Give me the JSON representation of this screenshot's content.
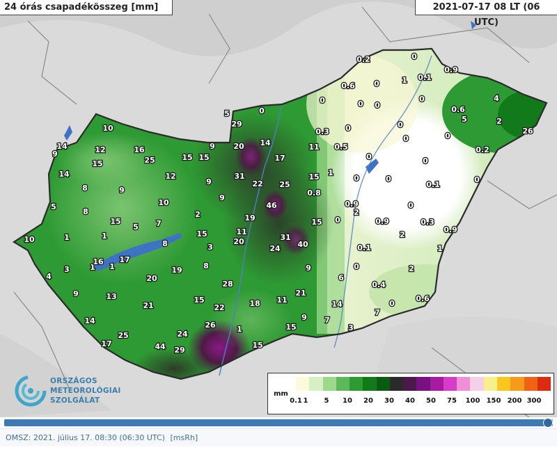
{
  "map": {
    "title": "24 órás csapadékösszeg [mm]",
    "timestamp": "2021-07-17 08 LT  (06 UTC)"
  },
  "logo": {
    "line1": "ORSZÁGOS",
    "line2": "METEOROLÓGIAI",
    "line3": "SZOLGÁLAT",
    "icon": "omsz-spiral-logo-icon"
  },
  "legend": {
    "unit": "mm",
    "ticks": [
      "0.1",
      "1",
      "5",
      "10",
      "20",
      "30",
      "40",
      "50",
      "75",
      "100",
      "150",
      "200",
      "300"
    ],
    "colors": [
      "#fbfbdc",
      "#d8efc3",
      "#9ed88c",
      "#5cb85a",
      "#2e9a33",
      "#137a1c",
      "#0b5a12",
      "#2a2a2a",
      "#4b1a4a",
      "#7a1180",
      "#a81a9e",
      "#d63cc8",
      "#f08ed8",
      "#f6d0e6",
      "#f8f08a",
      "#f8c820",
      "#f59a1a",
      "#ee6414",
      "#dd2a10"
    ]
  },
  "observations": [
    {
      "v": "0.2"
    },
    {
      "v": "0"
    },
    {
      "v": "0.9"
    },
    {
      "v": "1"
    },
    {
      "v": "0.1"
    },
    {
      "v": "0"
    },
    {
      "v": "0.6"
    },
    {
      "v": "0"
    },
    {
      "v": "0"
    },
    {
      "v": "4"
    },
    {
      "v": "0"
    },
    {
      "v": "0"
    },
    {
      "v": "0"
    },
    {
      "v": "0"
    },
    {
      "v": "0.6"
    },
    {
      "v": "5"
    },
    {
      "v": "0"
    },
    {
      "v": "2"
    },
    {
      "v": "26"
    },
    {
      "v": "0.3"
    },
    {
      "v": "0"
    },
    {
      "v": "0"
    },
    {
      "v": "0.5"
    },
    {
      "v": "0"
    },
    {
      "v": "0.2"
    },
    {
      "v": "0"
    },
    {
      "v": "0"
    },
    {
      "v": "0.1"
    },
    {
      "v": "0"
    },
    {
      "v": "0"
    },
    {
      "v": "0.9"
    },
    {
      "v": "2"
    },
    {
      "v": "0.9"
    },
    {
      "v": "0.3"
    },
    {
      "v": "0.9"
    },
    {
      "v": "2"
    },
    {
      "v": "0.1"
    },
    {
      "v": "1"
    },
    {
      "v": "0"
    },
    {
      "v": "2"
    },
    {
      "v": "0.4"
    },
    {
      "v": "0.6"
    },
    {
      "v": "0"
    },
    {
      "v": "7"
    },
    {
      "v": "5"
    },
    {
      "v": "0"
    },
    {
      "v": "29"
    },
    {
      "v": "20"
    },
    {
      "v": "14"
    },
    {
      "v": "11"
    },
    {
      "v": "17"
    },
    {
      "v": "31"
    },
    {
      "v": "22"
    },
    {
      "v": "25"
    },
    {
      "v": "15"
    },
    {
      "v": "1"
    },
    {
      "v": "0.8"
    },
    {
      "v": "46"
    },
    {
      "v": "19"
    },
    {
      "v": "15"
    },
    {
      "v": "0"
    },
    {
      "v": "11"
    },
    {
      "v": "31"
    },
    {
      "v": "40"
    },
    {
      "v": "24"
    },
    {
      "v": "11"
    },
    {
      "v": "9"
    },
    {
      "v": "6"
    },
    {
      "v": "21"
    },
    {
      "v": "18"
    },
    {
      "v": "11"
    },
    {
      "v": "14"
    },
    {
      "v": "9"
    },
    {
      "v": "7"
    },
    {
      "v": "3"
    },
    {
      "v": "15"
    },
    {
      "v": "1"
    },
    {
      "v": "15"
    },
    {
      "v": "10"
    },
    {
      "v": "10"
    },
    {
      "v": "14"
    },
    {
      "v": "9"
    },
    {
      "v": "12"
    },
    {
      "v": "16"
    },
    {
      "v": "25"
    },
    {
      "v": "15"
    },
    {
      "v": "15"
    },
    {
      "v": "9"
    },
    {
      "v": "15"
    },
    {
      "v": "14"
    },
    {
      "v": "12"
    },
    {
      "v": "9"
    },
    {
      "v": "8"
    },
    {
      "v": "9"
    },
    {
      "v": "9"
    },
    {
      "v": "5"
    },
    {
      "v": "8"
    },
    {
      "v": "10"
    },
    {
      "v": "2"
    },
    {
      "v": "15"
    },
    {
      "v": "5"
    },
    {
      "v": "7"
    },
    {
      "v": "15"
    },
    {
      "v": "1"
    },
    {
      "v": "1"
    },
    {
      "v": "8"
    },
    {
      "v": "20"
    },
    {
      "v": "3"
    },
    {
      "v": "1"
    },
    {
      "v": "4"
    },
    {
      "v": "3"
    },
    {
      "v": "1"
    },
    {
      "v": "16"
    },
    {
      "v": "17"
    },
    {
      "v": "19"
    },
    {
      "v": "8"
    },
    {
      "v": "20"
    },
    {
      "v": "9"
    },
    {
      "v": "13"
    },
    {
      "v": "21"
    },
    {
      "v": "28"
    },
    {
      "v": "15"
    },
    {
      "v": "22"
    },
    {
      "v": "14"
    },
    {
      "v": "25"
    },
    {
      "v": "17"
    },
    {
      "v": "24"
    },
    {
      "v": "44"
    },
    {
      "v": "29"
    },
    {
      "v": "26"
    }
  ],
  "progress": {
    "fraction": 1.0
  },
  "footer": {
    "text": "OMSZ: 2021. július 17. 08:30 (06:30  UTC)",
    "link": "[msRh]"
  }
}
